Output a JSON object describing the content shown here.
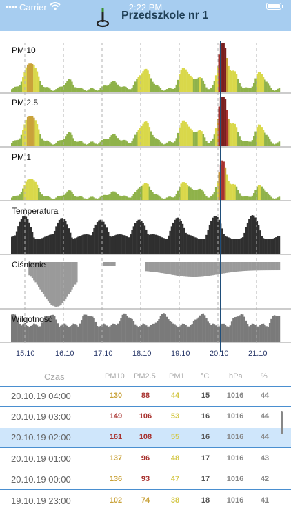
{
  "status_bar": {
    "carrier": "Carrier",
    "time": "2:22 PM"
  },
  "header": {
    "title": "Przedszkole nr 1"
  },
  "colors": {
    "header_bg": "#a7cdf0",
    "good": "#8fb24a",
    "moderate": "#d9d84a",
    "elevated": "#c9a23a",
    "high": "#a8322f",
    "very_high": "#7a1f1f",
    "dark_bars": "#2f2f2f",
    "gray_bars": "#9a9a9a",
    "selection": "#cfe6fb",
    "row_border": "#4a8fd0",
    "now_line": "#1f4e7a"
  },
  "charts": {
    "pm10": {
      "label": "PM 10"
    },
    "pm25": {
      "label": "PM 2.5"
    },
    "pm1": {
      "label": "PM 1"
    },
    "temperature": {
      "label": "Temperatura"
    },
    "pressure": {
      "label": "Ciśnienie"
    },
    "humidity": {
      "label": "Wilgotność"
    },
    "x_ticks": [
      "15.10",
      "16.10",
      "17.10",
      "18.10",
      "19.10",
      "20.10",
      "21.10"
    ]
  },
  "table": {
    "columns": [
      "Czas",
      "PM10",
      "PM2.5",
      "PM1",
      "°C",
      "hPa",
      "%"
    ],
    "rows": [
      {
        "time": "20.10.19  04:00",
        "pm10": "130",
        "pm25": "88",
        "pm1": "44",
        "temp": "15",
        "hpa": "1016",
        "hum": "44",
        "pm10_color": "#c9a23a",
        "pm25_color": "#a8322f",
        "pm1_color": "#d4c84a",
        "selected": false
      },
      {
        "time": "20.10.19  03:00",
        "pm10": "149",
        "pm25": "106",
        "pm1": "53",
        "temp": "16",
        "hpa": "1016",
        "hum": "44",
        "pm10_color": "#a8322f",
        "pm25_color": "#a8322f",
        "pm1_color": "#d4c84a",
        "selected": false
      },
      {
        "time": "20.10.19  02:00",
        "pm10": "161",
        "pm25": "108",
        "pm1": "55",
        "temp": "16",
        "hpa": "1016",
        "hum": "44",
        "pm10_color": "#a8322f",
        "pm25_color": "#a8322f",
        "pm1_color": "#d4c84a",
        "selected": true
      },
      {
        "time": "20.10.19  01:00",
        "pm10": "137",
        "pm25": "96",
        "pm1": "48",
        "temp": "17",
        "hpa": "1016",
        "hum": "43",
        "pm10_color": "#c9a23a",
        "pm25_color": "#a8322f",
        "pm1_color": "#d4c84a",
        "selected": false
      },
      {
        "time": "20.10.19  00:00",
        "pm10": "136",
        "pm25": "93",
        "pm1": "47",
        "temp": "17",
        "hpa": "1016",
        "hum": "42",
        "pm10_color": "#c9a23a",
        "pm25_color": "#a8322f",
        "pm1_color": "#d4c84a",
        "selected": false
      },
      {
        "time": "19.10.19  23:00",
        "pm10": "102",
        "pm25": "74",
        "pm1": "38",
        "temp": "18",
        "hpa": "1016",
        "hum": "41",
        "pm10_color": "#c9a23a",
        "pm25_color": "#c9a23a",
        "pm1_color": "#d4c84a",
        "selected": false
      }
    ]
  }
}
